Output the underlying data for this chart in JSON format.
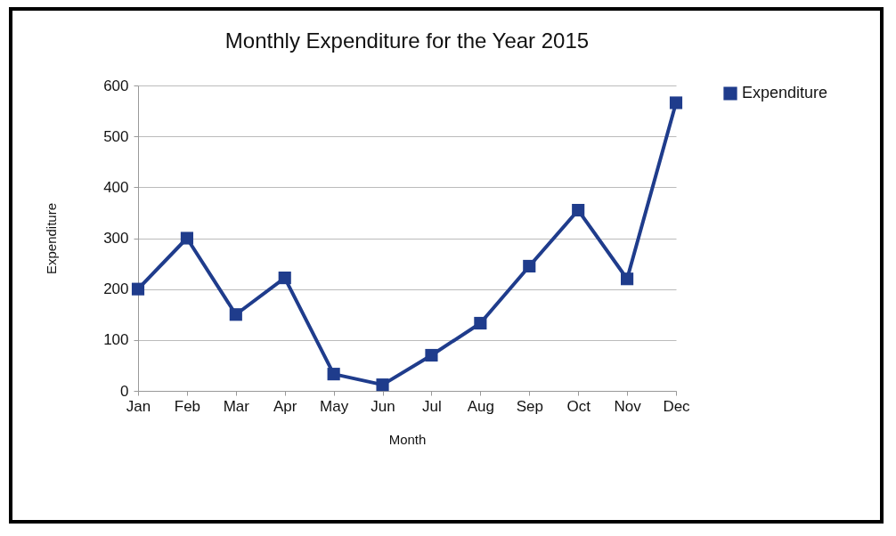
{
  "chart_data": {
    "type": "line",
    "title": "Monthly Expenditure for the Year 2015",
    "xlabel": "Month",
    "ylabel": "Expenditure",
    "categories": [
      "Jan",
      "Feb",
      "Mar",
      "Apr",
      "May",
      "Jun",
      "Jul",
      "Aug",
      "Sep",
      "Oct",
      "Nov",
      "Dec"
    ],
    "series": [
      {
        "name": "Expenditure",
        "color": "#1f3c8c",
        "values": [
          200,
          300,
          150,
          222,
          33,
          12,
          70,
          133,
          245,
          355,
          220,
          566
        ]
      }
    ],
    "ylim": [
      0,
      600
    ],
    "yticks": [
      0,
      100,
      200,
      300,
      400,
      500,
      600
    ],
    "grid": "y",
    "legend": "right",
    "marker": "square",
    "line_style": "solid"
  }
}
